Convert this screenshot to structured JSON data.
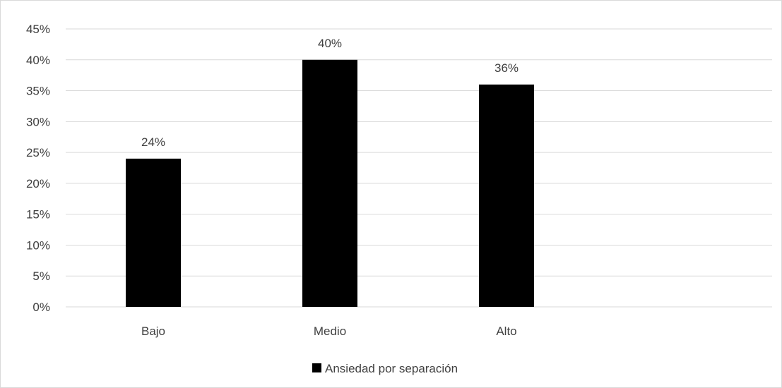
{
  "chart_data": {
    "type": "bar",
    "title": "",
    "xlabel": "",
    "ylabel": "",
    "categories": [
      "Bajo",
      "Medio",
      "Alto"
    ],
    "series": [
      {
        "name": "Ansiedad por separación",
        "values": [
          24,
          40,
          36
        ]
      }
    ],
    "data_labels": [
      "24%",
      "40%",
      "36%"
    ],
    "ylim": [
      0,
      45
    ],
    "yticks": [
      0,
      5,
      10,
      15,
      20,
      25,
      30,
      35,
      40,
      45
    ],
    "ytick_labels": [
      "0%",
      "5%",
      "10%",
      "15%",
      "20%",
      "25%",
      "30%",
      "35%",
      "40%",
      "45%"
    ],
    "grid": true,
    "legend_position": "bottom",
    "bar_color": "#000000",
    "grid_color": "#d9d9d9"
  }
}
